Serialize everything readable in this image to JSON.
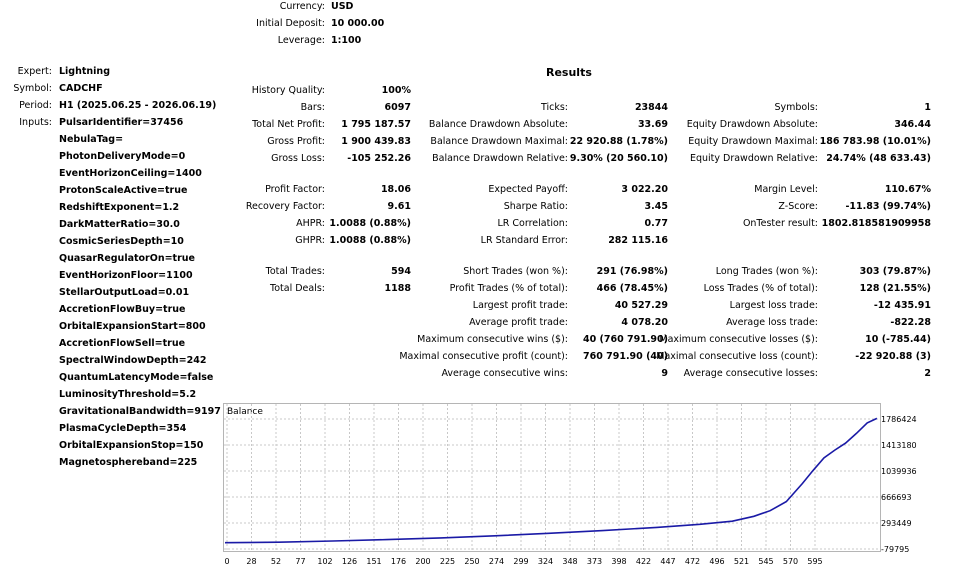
{
  "header": {
    "currency_label": "Currency:",
    "currency": "USD",
    "deposit_label": "Initial Deposit:",
    "deposit": "10 000.00",
    "leverage_label": "Leverage:",
    "leverage": "1:100"
  },
  "info": {
    "expert_label": "Expert:",
    "expert": "Lightning",
    "symbol_label": "Symbol:",
    "symbol": "CADCHF",
    "period_label": "Period:",
    "period": "H1 (2025.06.25 - 2026.06.19)",
    "inputs_label": "Inputs:",
    "inputs": [
      "PulsarIdentifier=37456",
      "NebulaTag=",
      "PhotonDeliveryMode=0",
      "EventHorizonCeiling=1400",
      "ProtonScaleActive=true",
      "RedshiftExponent=1.2",
      "DarkMatterRatio=30.0",
      "CosmicSeriesDepth=10",
      "QuasarRegulatorOn=true",
      "EventHorizonFloor=1100",
      "StellarOutputLoad=0.01",
      "AccretionFlowBuy=true",
      "OrbitalExpansionStart=800",
      "AccretionFlowSell=true",
      "SpectralWindowDepth=242",
      "QuantumLatencyMode=false",
      "LuminosityThreshold=5.2",
      "GravitationalBandwidth=9197",
      "PlasmaCycleDepth=354",
      "OrbitalExpansionStop=150",
      "Magnetosphereband=225"
    ]
  },
  "results": {
    "title": "Results",
    "col1": [
      {
        "label": "History Quality:",
        "value": "100%"
      },
      {
        "label": "Bars:",
        "value": "6097"
      },
      {
        "label": "Total Net Profit:",
        "value": "1 795 187.57"
      },
      {
        "label": "Gross Profit:",
        "value": "1 900 439.83"
      },
      {
        "label": "Gross Loss:",
        "value": "-105 252.26"
      },
      {
        "label": "Profit Factor:",
        "value": "18.06"
      },
      {
        "label": "Recovery Factor:",
        "value": "9.61"
      },
      {
        "label": "AHPR:",
        "value": "1.0088 (0.88%)"
      },
      {
        "label": "GHPR:",
        "value": "1.0088 (0.88%)"
      },
      {
        "label": "Total Trades:",
        "value": "594"
      },
      {
        "label": "Total Deals:",
        "value": "1188"
      }
    ],
    "col2": [
      {
        "label": "Ticks:",
        "value": "23844"
      },
      {
        "label": "Balance Drawdown Absolute:",
        "value": "33.69"
      },
      {
        "label": "Balance Drawdown Maximal:",
        "value": "22 920.88 (1.78%)"
      },
      {
        "label": "Balance Drawdown Relative:",
        "value": "9.30% (20 560.10)"
      },
      {
        "label": "Expected Payoff:",
        "value": "3 022.20"
      },
      {
        "label": "Sharpe Ratio:",
        "value": "3.45"
      },
      {
        "label": "LR Correlation:",
        "value": "0.77"
      },
      {
        "label": "LR Standard Error:",
        "value": "282 115.16"
      },
      {
        "label": "Short Trades (won %):",
        "value": "291 (76.98%)"
      },
      {
        "label": "Profit Trades (% of total):",
        "value": "466 (78.45%)"
      },
      {
        "label": "Largest profit trade:",
        "value": "40 527.29"
      },
      {
        "label": "Average profit trade:",
        "value": "4 078.20"
      },
      {
        "label": "Maximum consecutive wins ($):",
        "value": "40 (760 791.90)"
      },
      {
        "label": "Maximal consecutive profit (count):",
        "value": "760 791.90 (40)"
      },
      {
        "label": "Average consecutive wins:",
        "value": "9"
      }
    ],
    "col3": [
      {
        "label": "Symbols:",
        "value": "1"
      },
      {
        "label": "Equity Drawdown Absolute:",
        "value": "346.44"
      },
      {
        "label": "Equity Drawdown Maximal:",
        "value": "186 783.98 (10.01%)"
      },
      {
        "label": "Equity Drawdown Relative:",
        "value": "24.74% (48 633.43)"
      },
      {
        "label": "Margin Level:",
        "value": "110.67%"
      },
      {
        "label": "Z-Score:",
        "value": "-11.83 (99.74%)"
      },
      {
        "label": "OnTester result:",
        "value": "1802.818581909958"
      },
      {
        "label": "Long Trades (won %):",
        "value": "303 (79.87%)"
      },
      {
        "label": "Loss Trades (% of total):",
        "value": "128 (21.55%)"
      },
      {
        "label": "Largest loss trade:",
        "value": "-12 435.91"
      },
      {
        "label": "Average loss trade:",
        "value": "-822.28"
      },
      {
        "label": "Maximum consecutive losses ($):",
        "value": "10 (-785.44)"
      },
      {
        "label": "Maximal consecutive loss (count):",
        "value": "-22 920.88 (3)"
      },
      {
        "label": "Average consecutive losses:",
        "value": "2"
      }
    ]
  },
  "colors": {
    "line": "#1a1aa6",
    "grid": "#c8c8c8",
    "border": "#b5b5b5"
  },
  "chart_data": {
    "type": "line",
    "title": "Balance",
    "x_ticks": [
      "0",
      "28",
      "52",
      "77",
      "102",
      "126",
      "151",
      "176",
      "200",
      "225",
      "250",
      "274",
      "299",
      "324",
      "348",
      "373",
      "398",
      "422",
      "447",
      "472",
      "496",
      "521",
      "545",
      "570",
      "595"
    ],
    "y_ticks": [
      "1786424",
      "1413180",
      "1039936",
      "666693",
      "293449",
      "-79795"
    ],
    "y_tick_values": [
      1786424,
      1413180,
      1039936,
      666693,
      293449,
      -79795
    ],
    "xlim": [
      0,
      605
    ],
    "ylim": [
      -79795,
      1786424
    ],
    "series": [
      {
        "x": [
          0,
          50,
          100,
          150,
          200,
          250,
          300,
          350,
          400,
          440,
          470,
          490,
          505,
          520,
          535,
          545,
          555,
          565,
          575,
          585,
          595,
          604
        ],
        "y": [
          10000,
          18000,
          35000,
          55000,
          80000,
          110000,
          145000,
          185000,
          230000,
          275000,
          320000,
          390000,
          470000,
          600000,
          860000,
          1050000,
          1230000,
          1340000,
          1440000,
          1580000,
          1730000,
          1795187
        ]
      }
    ]
  }
}
